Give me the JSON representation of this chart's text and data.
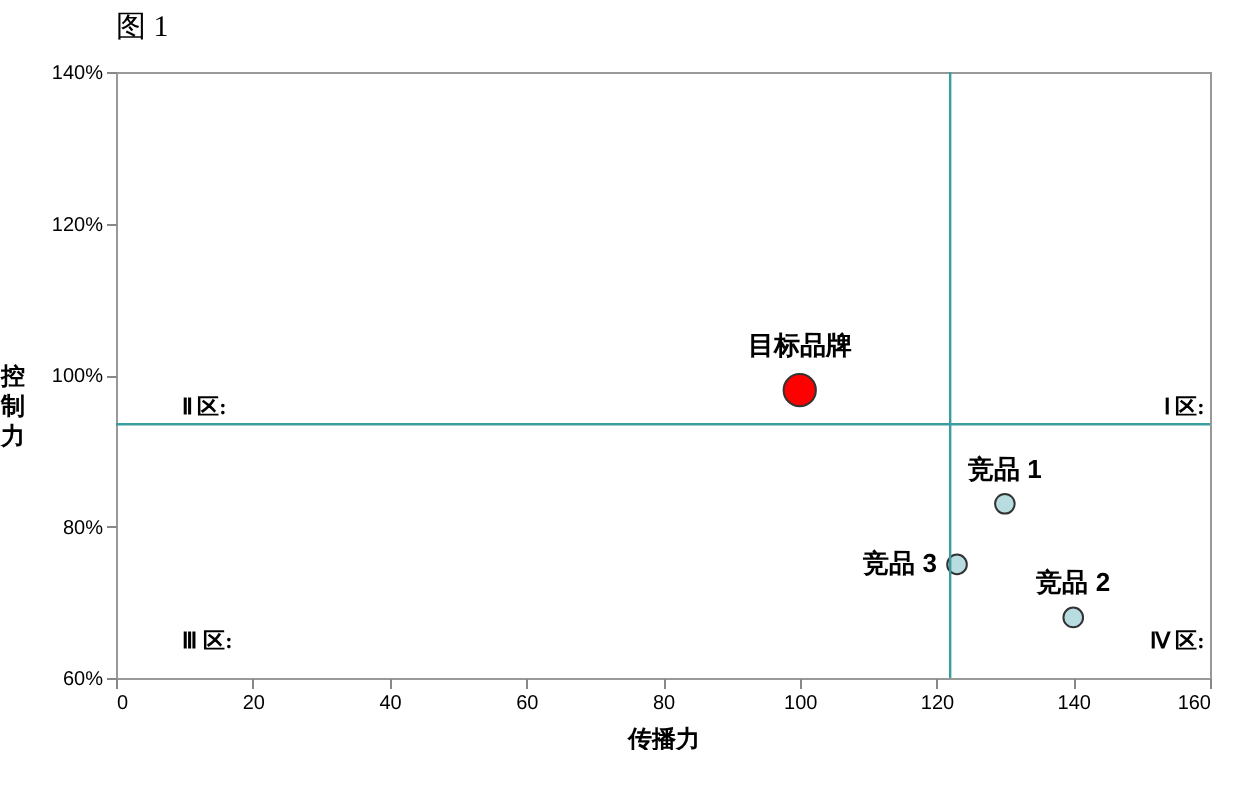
{
  "chart_data": {
    "type": "bubble",
    "title": "图 1",
    "xlabel": "传播力",
    "ylabel": "控制力",
    "xlim": [
      0,
      160
    ],
    "xticks": [
      0,
      20,
      40,
      60,
      80,
      100,
      120,
      140,
      160
    ],
    "ylim": [
      60,
      140
    ],
    "yticks": [
      {
        "value": 60,
        "label": "60%"
      },
      {
        "value": 80,
        "label": "80%"
      },
      {
        "value": 100,
        "label": "100%"
      },
      {
        "value": 120,
        "label": "120%"
      },
      {
        "value": 140,
        "label": "140%"
      }
    ],
    "series": [
      {
        "name": "目标品牌",
        "color": "#ff0000",
        "x": [
          100
        ],
        "values": [
          98
        ],
        "sizes": [
          1
        ]
      },
      {
        "name": "竞品 1",
        "color": "#b7dde0",
        "x": [
          130
        ],
        "values": [
          83
        ],
        "sizes": [
          0.37
        ]
      },
      {
        "name": "竞品 2",
        "color": "#b7dde0",
        "x": [
          140
        ],
        "values": [
          68
        ],
        "sizes": [
          0.37
        ]
      },
      {
        "name": "竞品 3",
        "color": "#b7dde0",
        "x": [
          123
        ],
        "values": [
          75
        ],
        "sizes": [
          0.37
        ]
      }
    ],
    "ref_lines": [
      {
        "axis": "x",
        "value": 122,
        "color": "#3a9e9e"
      },
      {
        "axis": "y",
        "value": 93.5,
        "color": "#3a9e9e"
      }
    ],
    "annotations": [
      "Ⅱ 区:",
      "Ⅰ 区:",
      "Ⅲ 区:",
      "Ⅳ 区:"
    ],
    "marker": "circle",
    "grid": false
  }
}
